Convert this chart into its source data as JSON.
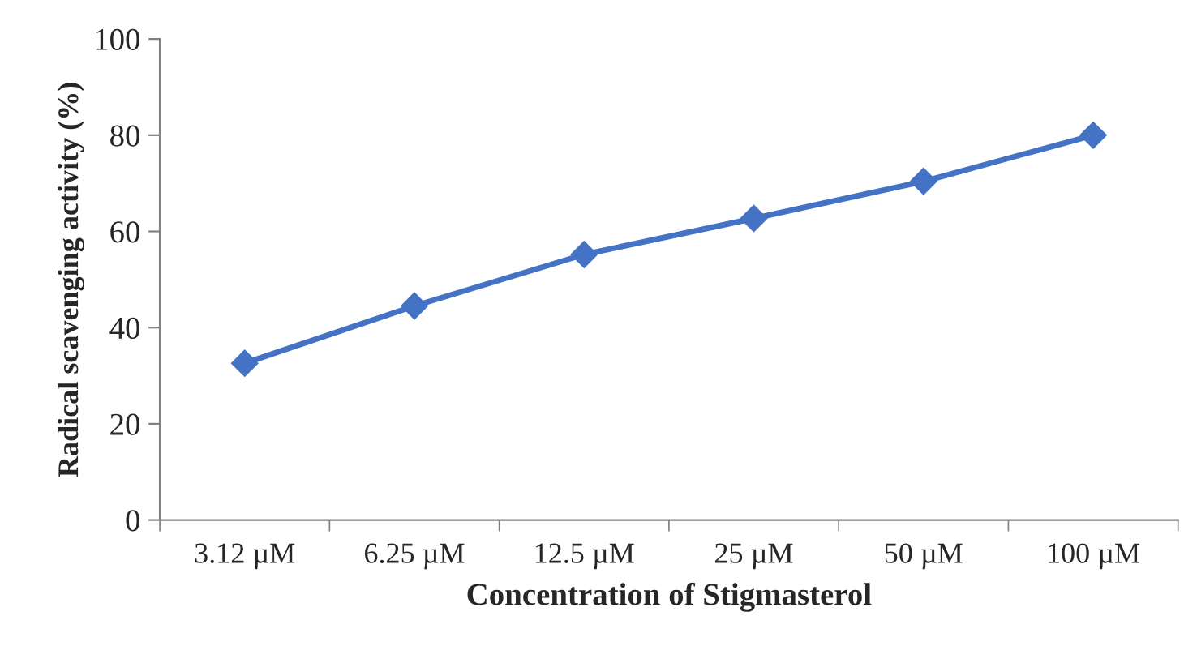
{
  "chart_data": {
    "type": "line",
    "xlabel": "Concentration of Stigmasterol",
    "ylabel": "Radical scavenging activity (%)",
    "categories": [
      "3.12 µM",
      "6.25 µM",
      "12.5 µM",
      "25 µM",
      "50 µM",
      "100 µM"
    ],
    "series": [
      {
        "color": "#4472c4",
        "values": [
          32.6,
          44.5,
          55.2,
          62.7,
          70.4,
          80.0
        ]
      }
    ],
    "ylim": [
      0,
      100
    ],
    "yticks": [
      0,
      20,
      40,
      60,
      80,
      100
    ],
    "grid": false,
    "marker": "diamond",
    "line_style": "solid"
  }
}
